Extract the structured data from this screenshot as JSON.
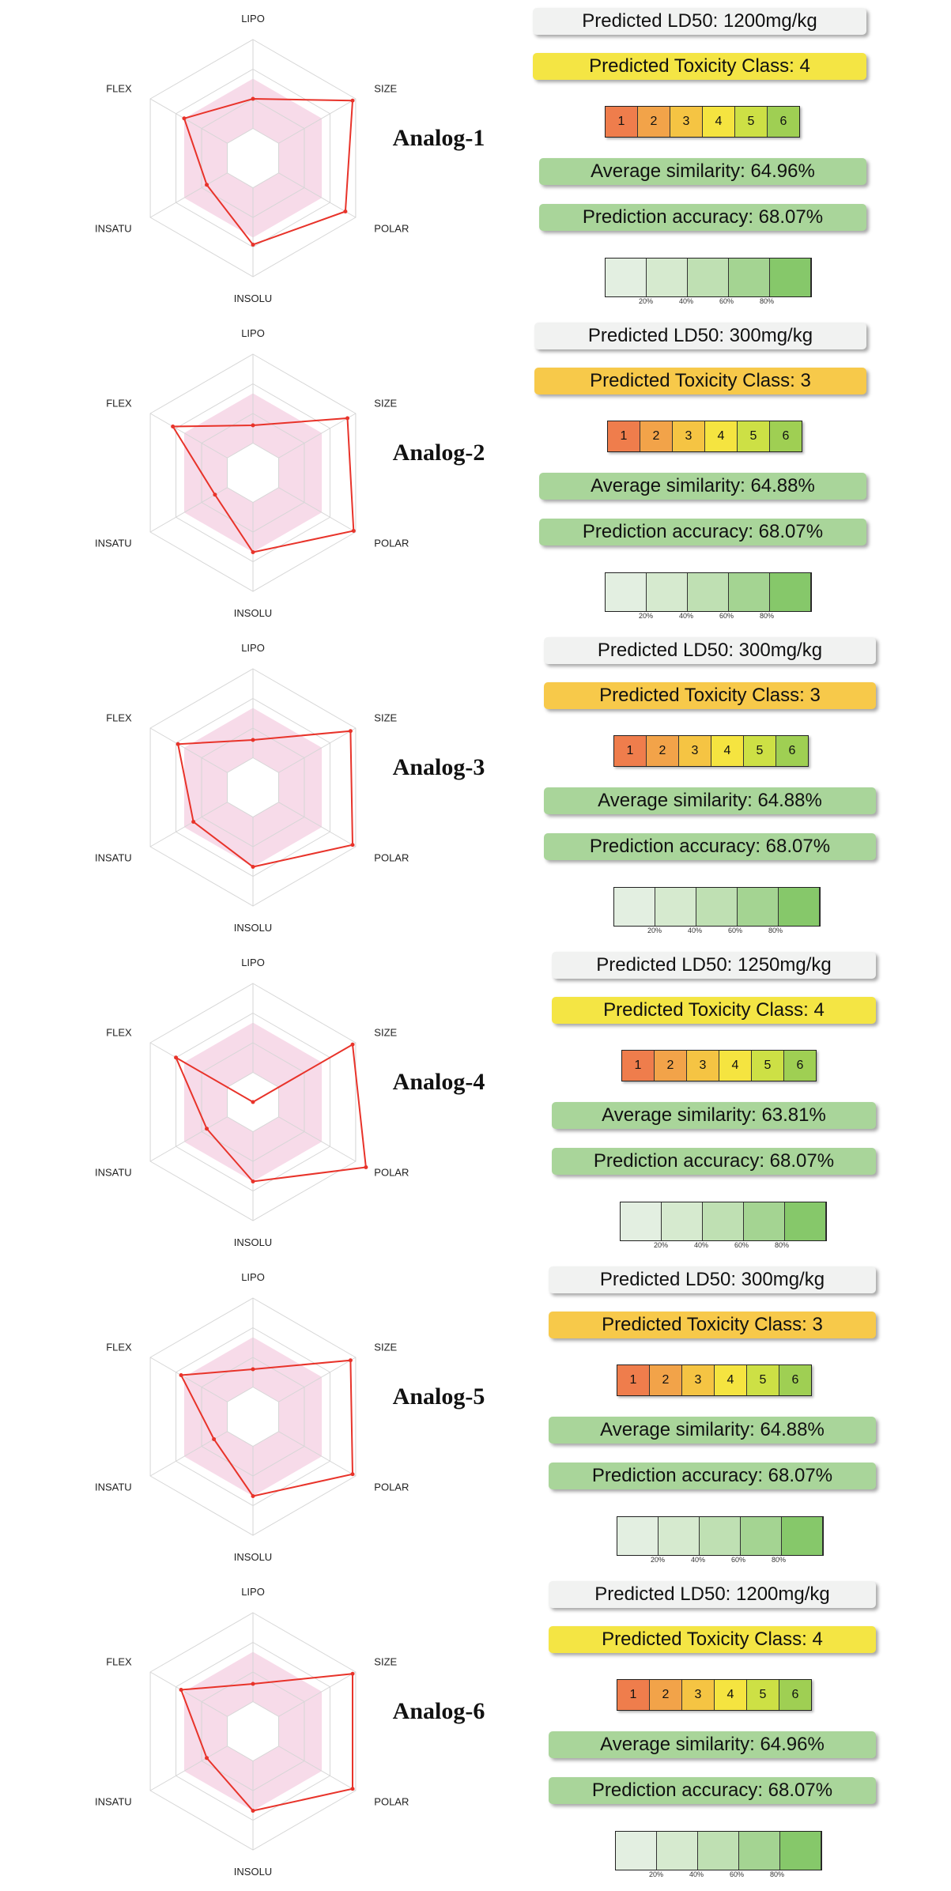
{
  "axes": [
    "LIPO",
    "SIZE",
    "POLAR",
    "INSOLU",
    "INSATU",
    "FLEX"
  ],
  "class_scale": [
    {
      "label": "1",
      "color": "#ef7d4c"
    },
    {
      "label": "2",
      "color": "#f2a349"
    },
    {
      "label": "3",
      "color": "#f5c443"
    },
    {
      "label": "4",
      "color": "#f5e440"
    },
    {
      "label": "5",
      "color": "#cde045"
    },
    {
      "label": "6",
      "color": "#9fcf53"
    }
  ],
  "accuracy_scale": {
    "colors": [
      "#e3efe1",
      "#d6eacf",
      "#bfe0b3",
      "#a4d492",
      "#86c86a"
    ],
    "ticks": [
      "20%",
      "40%",
      "60%",
      "80%"
    ]
  },
  "colors": {
    "radar_line": "#e8332a",
    "radar_fill": "#f7dbe9",
    "grid": "#d6d6d6"
  },
  "chart_data": [
    {
      "type": "radar",
      "title": "Analog-1",
      "axes": [
        "LIPO",
        "SIZE",
        "POLAR",
        "INSOLU",
        "INSATU",
        "FLEX"
      ],
      "range": [
        0,
        1
      ],
      "values": [
        0.5,
        0.97,
        0.9,
        0.73,
        0.45,
        0.67
      ]
    },
    {
      "type": "radar",
      "title": "Analog-2",
      "axes": [
        "LIPO",
        "SIZE",
        "POLAR",
        "INSOLU",
        "INSATU",
        "FLEX"
      ],
      "range": [
        0,
        1
      ],
      "values": [
        0.4,
        0.92,
        0.98,
        0.67,
        0.37,
        0.78
      ]
    },
    {
      "type": "radar",
      "title": "Analog-3",
      "axes": [
        "LIPO",
        "SIZE",
        "POLAR",
        "INSOLU",
        "INSATU",
        "FLEX"
      ],
      "range": [
        0,
        1
      ],
      "values": [
        0.4,
        0.95,
        0.97,
        0.67,
        0.58,
        0.73
      ]
    },
    {
      "type": "radar",
      "title": "Analog-4",
      "axes": [
        "LIPO",
        "SIZE",
        "POLAR",
        "INSOLU",
        "INSATU",
        "FLEX"
      ],
      "range": [
        0,
        1
      ],
      "values": [
        0.0,
        0.97,
        1.1,
        0.67,
        0.45,
        0.75
      ]
    },
    {
      "type": "radar",
      "title": "Analog-5",
      "axes": [
        "LIPO",
        "SIZE",
        "POLAR",
        "INSOLU",
        "INSATU",
        "FLEX"
      ],
      "range": [
        0,
        1
      ],
      "values": [
        0.4,
        0.95,
        0.97,
        0.67,
        0.38,
        0.7
      ]
    },
    {
      "type": "radar",
      "title": "Analog-6",
      "axes": [
        "LIPO",
        "SIZE",
        "POLAR",
        "INSOLU",
        "INSATU",
        "FLEX"
      ],
      "range": [
        0,
        1
      ],
      "values": [
        0.4,
        0.97,
        0.97,
        0.67,
        0.45,
        0.7
      ]
    }
  ],
  "analogs": [
    {
      "name": "Analog-1",
      "ld50": "Predicted LD50: 1200mg/kg",
      "toxicity_class": "Predicted Toxicity Class: 4",
      "class_value": 4,
      "similarity": "Average similarity: 64.96%",
      "accuracy": "Prediction accuracy: 68.07%",
      "accuracy_value": 68.07
    },
    {
      "name": "Analog-2",
      "ld50": "Predicted LD50: 300mg/kg",
      "toxicity_class": "Predicted Toxicity Class: 3",
      "class_value": 3,
      "similarity": "Average similarity: 64.88%",
      "accuracy": "Prediction accuracy: 68.07%",
      "accuracy_value": 68.07
    },
    {
      "name": "Analog-3",
      "ld50": "Predicted LD50: 300mg/kg",
      "toxicity_class": "Predicted Toxicity Class: 3",
      "class_value": 3,
      "similarity": "Average similarity: 64.88%",
      "accuracy": "Prediction accuracy: 68.07%",
      "accuracy_value": 68.07
    },
    {
      "name": "Analog-4",
      "ld50": "Predicted LD50: 1250mg/kg",
      "toxicity_class": "Predicted Toxicity Class: 4",
      "class_value": 4,
      "similarity": "Average similarity: 63.81%",
      "accuracy": "Prediction accuracy: 68.07%",
      "accuracy_value": 68.07
    },
    {
      "name": "Analog-5",
      "ld50": "Predicted LD50: 300mg/kg",
      "toxicity_class": "Predicted Toxicity Class: 3",
      "class_value": 3,
      "similarity": "Average similarity: 64.88%",
      "accuracy": "Prediction accuracy: 68.07%",
      "accuracy_value": 68.07
    },
    {
      "name": "Analog-6",
      "ld50": "Predicted LD50: 1200mg/kg",
      "toxicity_class": "Predicted Toxicity Class: 4",
      "class_value": 4,
      "similarity": "Average similarity: 64.96%",
      "accuracy": "Prediction accuracy: 68.07%",
      "accuracy_value": 68.07
    }
  ]
}
